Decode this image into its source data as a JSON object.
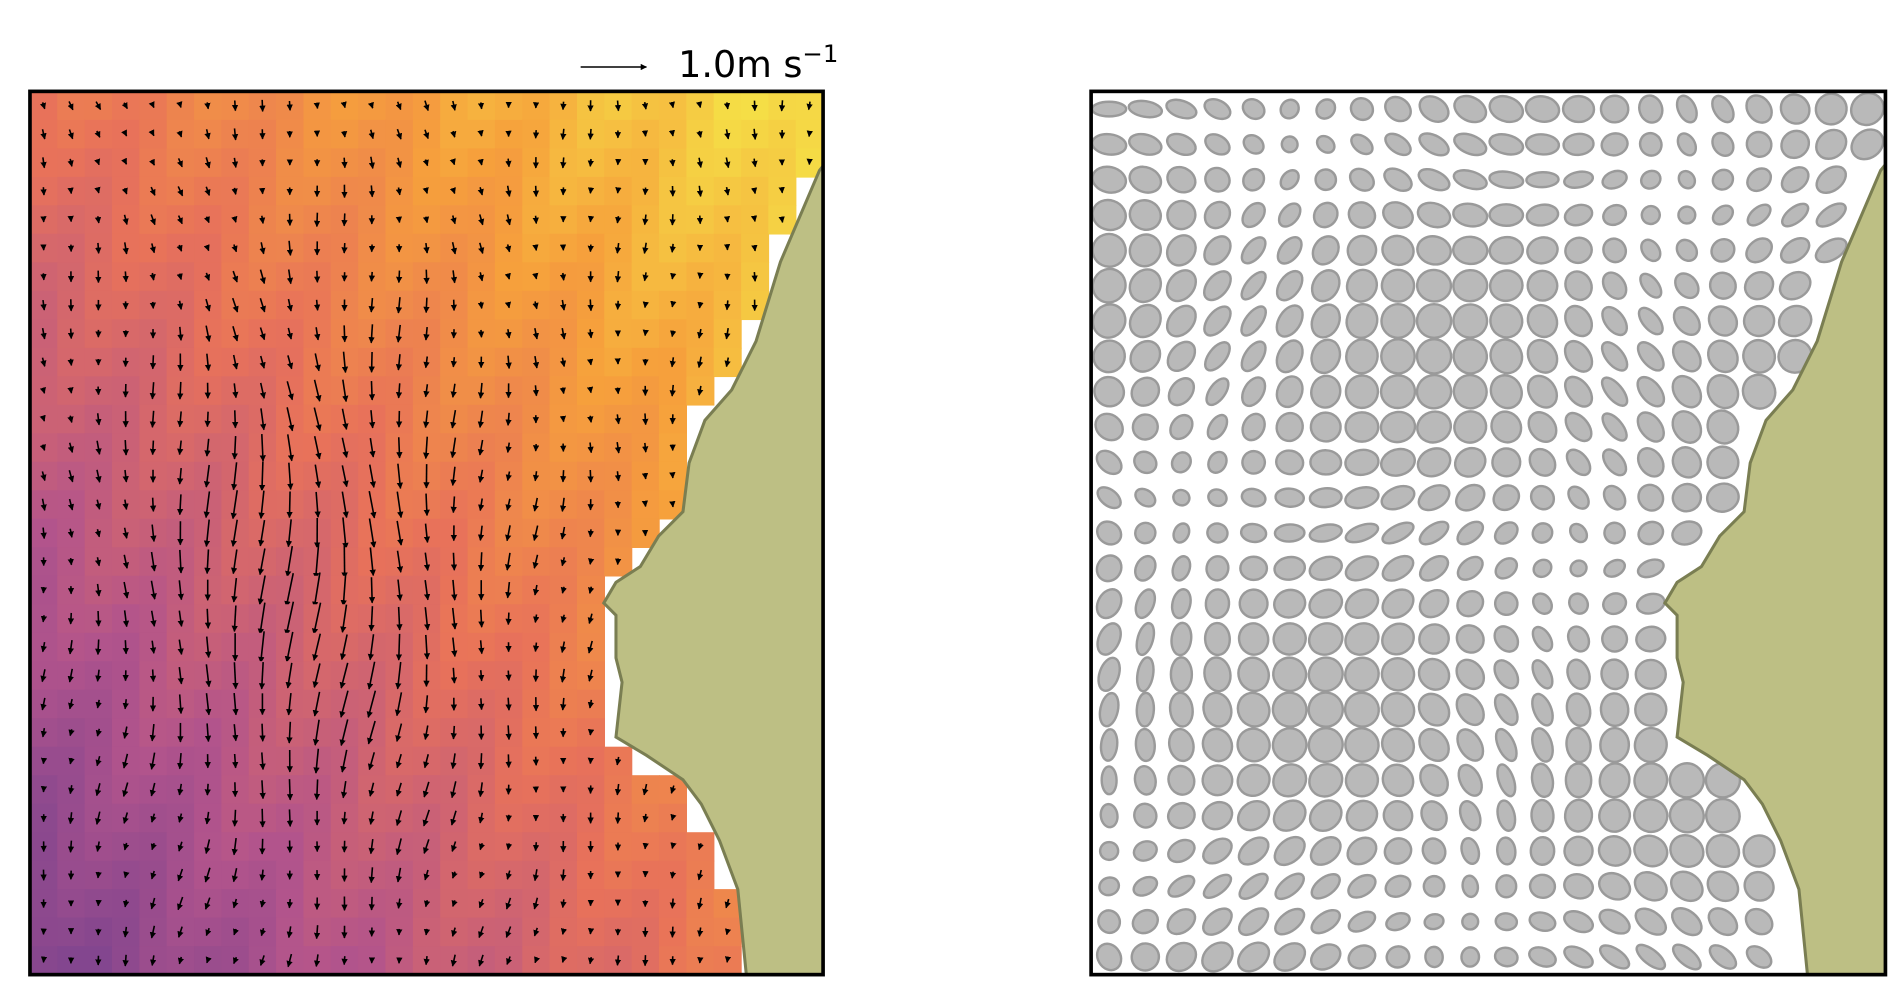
{
  "quiver_key": {
    "label": "1.0m s",
    "exponent": "−1"
  }
}
